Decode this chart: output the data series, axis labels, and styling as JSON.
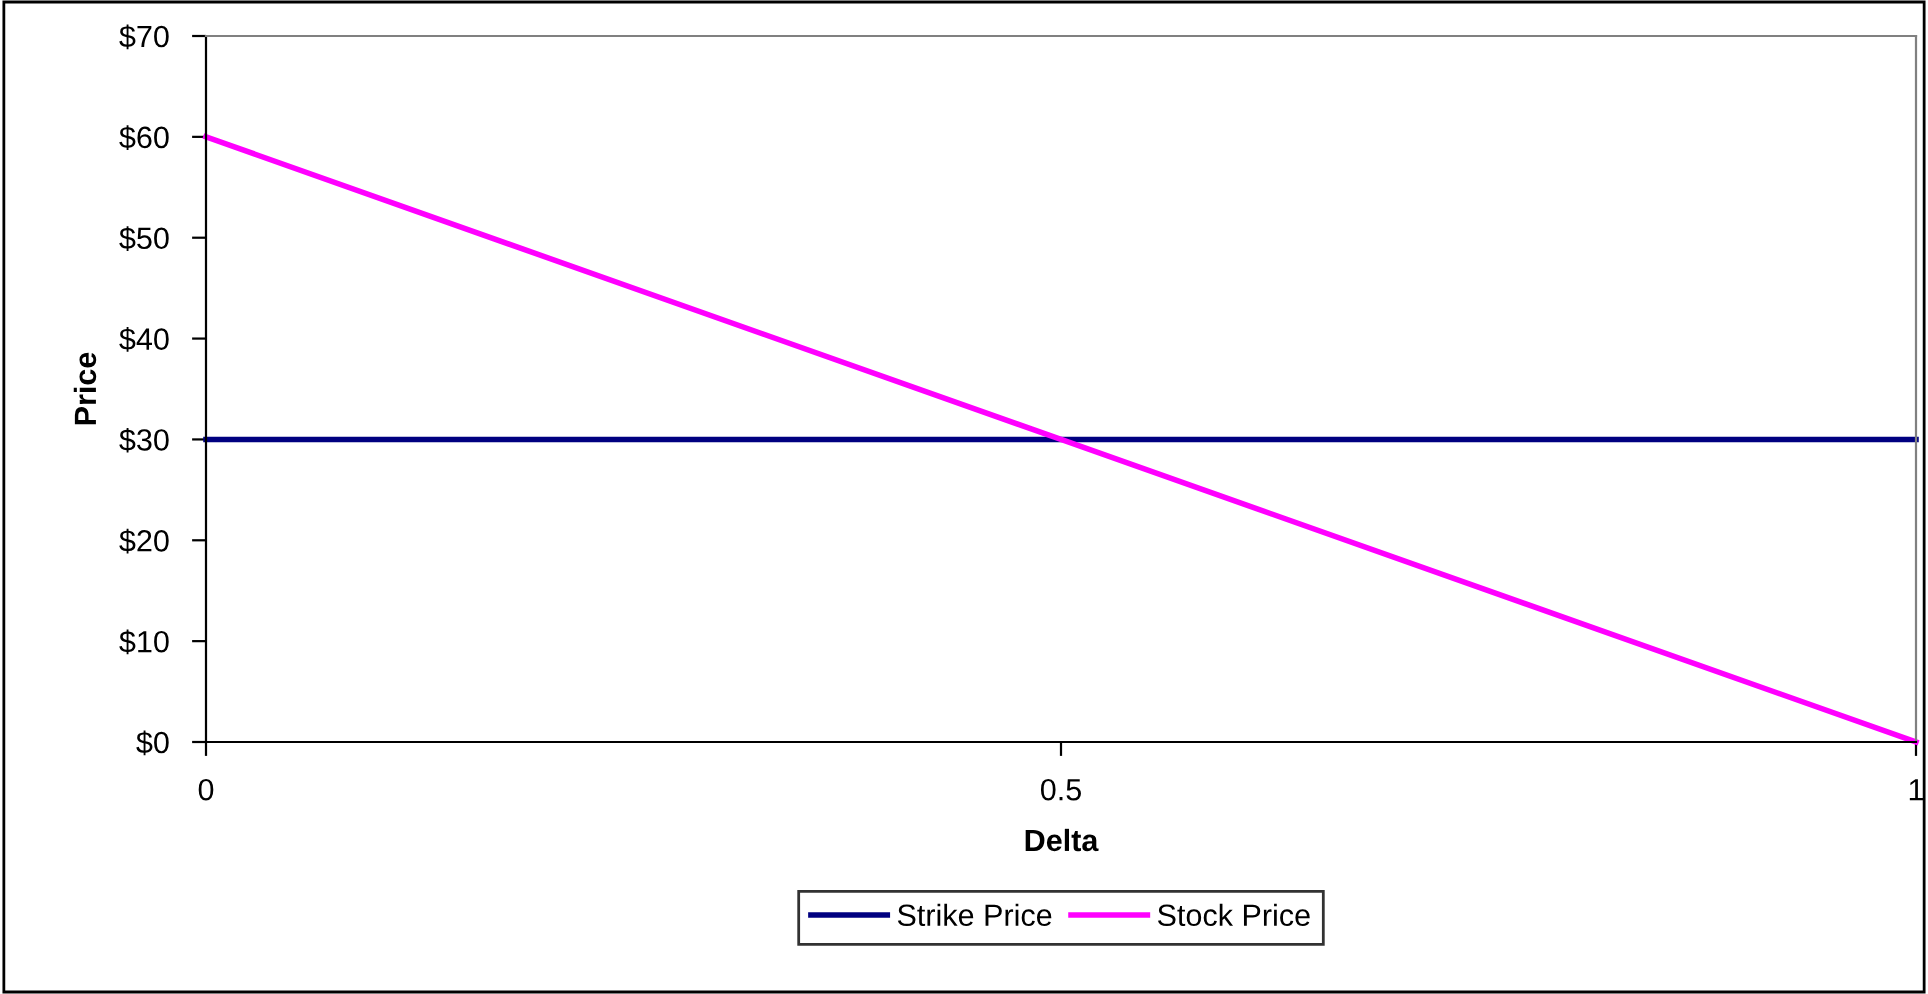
{
  "chart_data": {
    "type": "line",
    "xlabel": "Delta",
    "ylabel": "Price",
    "x": [
      0,
      0.5,
      1
    ],
    "series": [
      {
        "name": "Strike Price",
        "color": "#000080",
        "values": [
          30,
          30,
          30
        ]
      },
      {
        "name": "Stock Price",
        "color": "#ff00ff",
        "values": [
          60,
          30,
          0
        ]
      }
    ],
    "xlim": [
      0,
      1
    ],
    "xticks": [
      0,
      0.5,
      1
    ],
    "ylim": [
      0,
      70
    ],
    "yticks": [
      {
        "value": 0,
        "label": "$0"
      },
      {
        "value": 10,
        "label": "$10"
      },
      {
        "value": 20,
        "label": "$20"
      },
      {
        "value": 30,
        "label": "$30"
      },
      {
        "value": 40,
        "label": "$40"
      },
      {
        "value": 50,
        "label": "$50"
      },
      {
        "value": 60,
        "label": "$60"
      },
      {
        "value": 70,
        "label": "$70"
      }
    ],
    "grid": false,
    "legend": "bottom",
    "marker": "none",
    "line_style": "solid"
  }
}
